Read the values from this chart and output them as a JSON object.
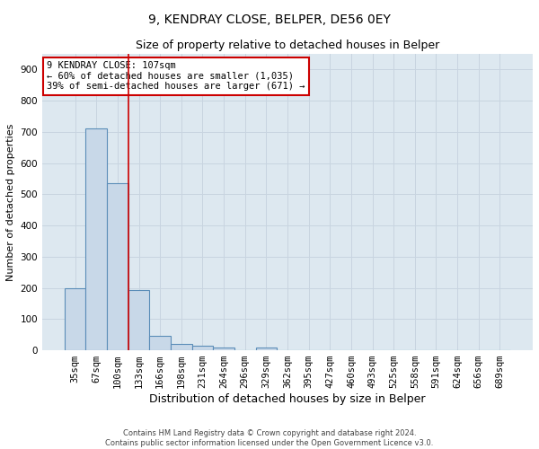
{
  "title": "9, KENDRAY CLOSE, BELPER, DE56 0EY",
  "subtitle": "Size of property relative to detached houses in Belper",
  "xlabel": "Distribution of detached houses by size in Belper",
  "ylabel": "Number of detached properties",
  "categories": [
    "35sqm",
    "67sqm",
    "100sqm",
    "133sqm",
    "166sqm",
    "198sqm",
    "231sqm",
    "264sqm",
    "296sqm",
    "329sqm",
    "362sqm",
    "395sqm",
    "427sqm",
    "460sqm",
    "493sqm",
    "525sqm",
    "558sqm",
    "591sqm",
    "624sqm",
    "656sqm",
    "689sqm"
  ],
  "values": [
    200,
    710,
    535,
    193,
    45,
    20,
    15,
    10,
    0,
    10,
    0,
    0,
    0,
    0,
    0,
    0,
    0,
    0,
    0,
    0,
    0
  ],
  "bar_color": "#c8d8e8",
  "bar_edge_color": "#5b8db8",
  "bar_edge_width": 0.8,
  "red_line_x": 2.5,
  "annotation_text": "9 KENDRAY CLOSE: 107sqm\n← 60% of detached houses are smaller (1,035)\n39% of semi-detached houses are larger (671) →",
  "annotation_box_color": "#ffffff",
  "annotation_box_edge_color": "#cc0000",
  "ylim": [
    0,
    950
  ],
  "yticks": [
    0,
    100,
    200,
    300,
    400,
    500,
    600,
    700,
    800,
    900
  ],
  "grid_color": "#c8d4e0",
  "background_color": "#dde8f0",
  "footer_line1": "Contains HM Land Registry data © Crown copyright and database right 2024.",
  "footer_line2": "Contains public sector information licensed under the Open Government Licence v3.0.",
  "title_fontsize": 10,
  "subtitle_fontsize": 9,
  "xlabel_fontsize": 9,
  "ylabel_fontsize": 8,
  "tick_fontsize": 7.5,
  "footer_fontsize": 6
}
